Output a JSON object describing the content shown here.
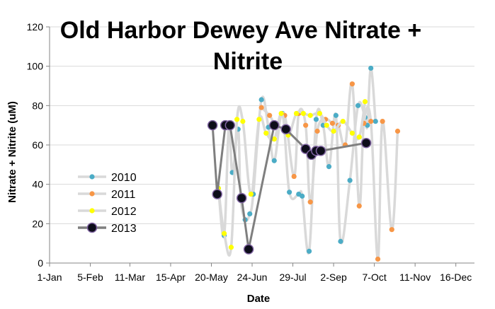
{
  "chart_data": {
    "type": "line",
    "title_lines": [
      "Old Harbor Dewey Ave Nitrate +",
      "Nitrite"
    ],
    "xlabel": "Date",
    "ylabel": "Nitrate + Nitrite (uM)",
    "xlim": [
      0,
      365
    ],
    "ylim": [
      0,
      120
    ],
    "y_ticks": [
      0,
      20,
      40,
      60,
      80,
      100,
      120
    ],
    "x_ticks": [
      {
        "day": 0,
        "label": "1-Jan"
      },
      {
        "day": 35,
        "label": "5-Feb"
      },
      {
        "day": 69,
        "label": "11-Mar"
      },
      {
        "day": 104,
        "label": "15-Apr"
      },
      {
        "day": 139,
        "label": "20-May"
      },
      {
        "day": 174,
        "label": "24-Jun"
      },
      {
        "day": 209,
        "label": "29-Jul"
      },
      {
        "day": 244,
        "label": "2-Sep"
      },
      {
        "day": 279,
        "label": "7-Oct"
      },
      {
        "day": 314,
        "label": "11-Nov"
      },
      {
        "day": 349,
        "label": "16-Dec"
      }
    ],
    "legend_position": "left",
    "series": [
      {
        "name": "2010",
        "line_color": "#d9d9d9",
        "marker_color": "#4bacc6",
        "x": [
          145,
          150,
          154,
          157,
          162,
          164,
          168,
          172,
          175,
          182,
          188,
          193,
          200,
          206,
          214,
          217,
          223,
          229,
          235,
          240,
          246,
          250,
          258,
          265,
          271,
          273,
          276,
          280
        ],
        "y": [
          38,
          14,
          70,
          46,
          68,
          34,
          22,
          25,
          35,
          83,
          69,
          52,
          76,
          36,
          35,
          34,
          6,
          73,
          70,
          49,
          75,
          11,
          42,
          80,
          74,
          70,
          99,
          72
        ]
      },
      {
        "name": "2011",
        "line_color": "#d9d9d9",
        "marker_color": "#f79646",
        "x": [
          182,
          189,
          195,
          202,
          210,
          214,
          220,
          224,
          230,
          237,
          243,
          248,
          254,
          260,
          266,
          270,
          276,
          282,
          286,
          294,
          299
        ],
        "y": [
          79,
          75,
          70,
          75,
          44,
          76,
          70,
          31,
          67,
          73,
          71,
          70,
          60,
          91,
          29,
          71,
          72,
          2,
          72,
          17,
          67
        ]
      },
      {
        "name": "2012",
        "line_color": "#d9d9d9",
        "marker_color": "#ffff00",
        "x": [
          145,
          150,
          156,
          161,
          166,
          173,
          180,
          186,
          193,
          199,
          205,
          212,
          218,
          224,
          232,
          238,
          244,
          252,
          260,
          266,
          271
        ],
        "y": [
          38,
          15,
          8,
          73,
          72,
          35,
          73,
          66,
          63,
          76,
          65,
          76,
          76,
          75,
          76,
          70,
          67,
          72,
          66,
          64,
          82
        ]
      },
      {
        "name": "2013",
        "line_color": "#7f7f7f",
        "marker_color": "#0d0d1a",
        "marker_edge": "#8064a2",
        "x": [
          140,
          144,
          151,
          155,
          165,
          171,
          193,
          203,
          220,
          225,
          229,
          233,
          272
        ],
        "y": [
          70,
          35,
          70,
          70,
          33,
          7,
          70,
          68,
          58,
          55,
          57,
          57,
          61
        ]
      }
    ]
  }
}
